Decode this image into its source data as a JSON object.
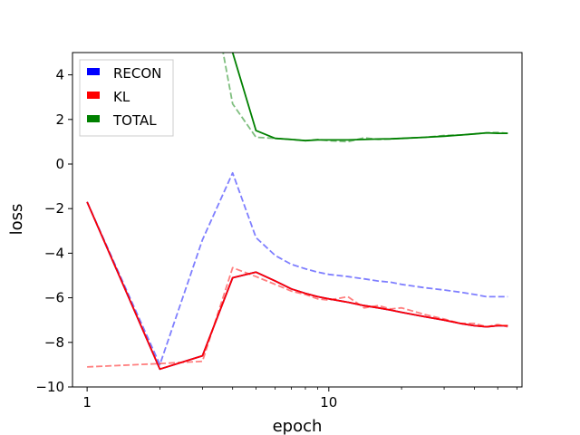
{
  "chart_data": {
    "type": "line",
    "xlabel": "epoch",
    "ylabel": "loss",
    "xscale": "log",
    "xlim": [
      0.87,
      63
    ],
    "ylim": [
      -10,
      5
    ],
    "x_ticks": [
      1,
      10
    ],
    "y_ticks": [
      -10,
      -8,
      -6,
      -4,
      -2,
      0,
      2,
      4
    ],
    "grid": false,
    "legend_position": "top-left",
    "legend": [
      {
        "name": "RECON",
        "color": "#0000ff"
      },
      {
        "name": "KL",
        "color": "#ff0000"
      },
      {
        "name": "TOTAL",
        "color": "#008000"
      }
    ],
    "x": [
      1,
      2,
      3,
      4,
      5,
      6,
      7,
      8,
      9,
      10,
      12,
      14,
      16,
      18,
      20,
      25,
      30,
      35,
      40,
      45,
      50,
      55
    ],
    "series": [
      {
        "legend": "RECON",
        "style": "solid",
        "color": "#0000ff",
        "values": [
          -1.7,
          -9.2,
          -8.6,
          -5.1,
          -4.85,
          -5.25,
          -5.6,
          -5.8,
          -5.95,
          -6.05,
          -6.2,
          -6.35,
          -6.45,
          -6.55,
          -6.65,
          -6.85,
          -7.0,
          -7.15,
          -7.25,
          -7.3,
          -7.25,
          -7.25
        ]
      },
      {
        "legend": "RECON",
        "style": "dashed",
        "color": "#0000ff",
        "opacity": 0.5,
        "values": [
          -1.7,
          -9.0,
          -3.4,
          -0.4,
          -3.3,
          -4.1,
          -4.5,
          -4.7,
          -4.85,
          -4.95,
          -5.05,
          -5.15,
          -5.25,
          -5.3,
          -5.4,
          -5.55,
          -5.65,
          -5.75,
          -5.85,
          -5.95,
          -5.95,
          -5.95
        ]
      },
      {
        "legend": "KL",
        "style": "solid",
        "color": "#ff0000",
        "values": [
          -1.7,
          -9.2,
          -8.6,
          -5.1,
          -4.85,
          -5.25,
          -5.6,
          -5.8,
          -5.95,
          -6.05,
          -6.2,
          -6.35,
          -6.45,
          -6.55,
          -6.65,
          -6.85,
          -7.0,
          -7.15,
          -7.25,
          -7.3,
          -7.25,
          -7.25
        ]
      },
      {
        "legend": "KL",
        "style": "dashed",
        "color": "#ff0000",
        "opacity": 0.5,
        "values": [
          -9.1,
          -8.95,
          -8.85,
          -4.65,
          -5.05,
          -5.4,
          -5.7,
          -5.85,
          -6.05,
          -6.1,
          -5.95,
          -6.45,
          -6.35,
          -6.5,
          -6.45,
          -6.75,
          -6.95,
          -7.15,
          -7.15,
          -7.3,
          -7.2,
          -7.3
        ]
      },
      {
        "legend": "TOTAL",
        "style": "solid",
        "color": "#008000",
        "values": [
          null,
          null,
          null,
          5.0,
          1.5,
          1.15,
          1.1,
          1.05,
          1.08,
          1.08,
          1.08,
          1.1,
          1.12,
          1.13,
          1.15,
          1.2,
          1.25,
          1.3,
          1.35,
          1.4,
          1.38,
          1.38
        ]
      },
      {
        "legend": "TOTAL",
        "style": "dashed",
        "color": "#008000",
        "opacity": 0.5,
        "values": [
          null,
          null,
          10.0,
          2.7,
          1.2,
          1.15,
          1.1,
          1.05,
          1.1,
          1.05,
          1.0,
          1.18,
          1.1,
          1.12,
          1.15,
          1.2,
          1.28,
          1.3,
          1.35,
          1.4,
          1.42,
          1.38
        ]
      }
    ]
  }
}
